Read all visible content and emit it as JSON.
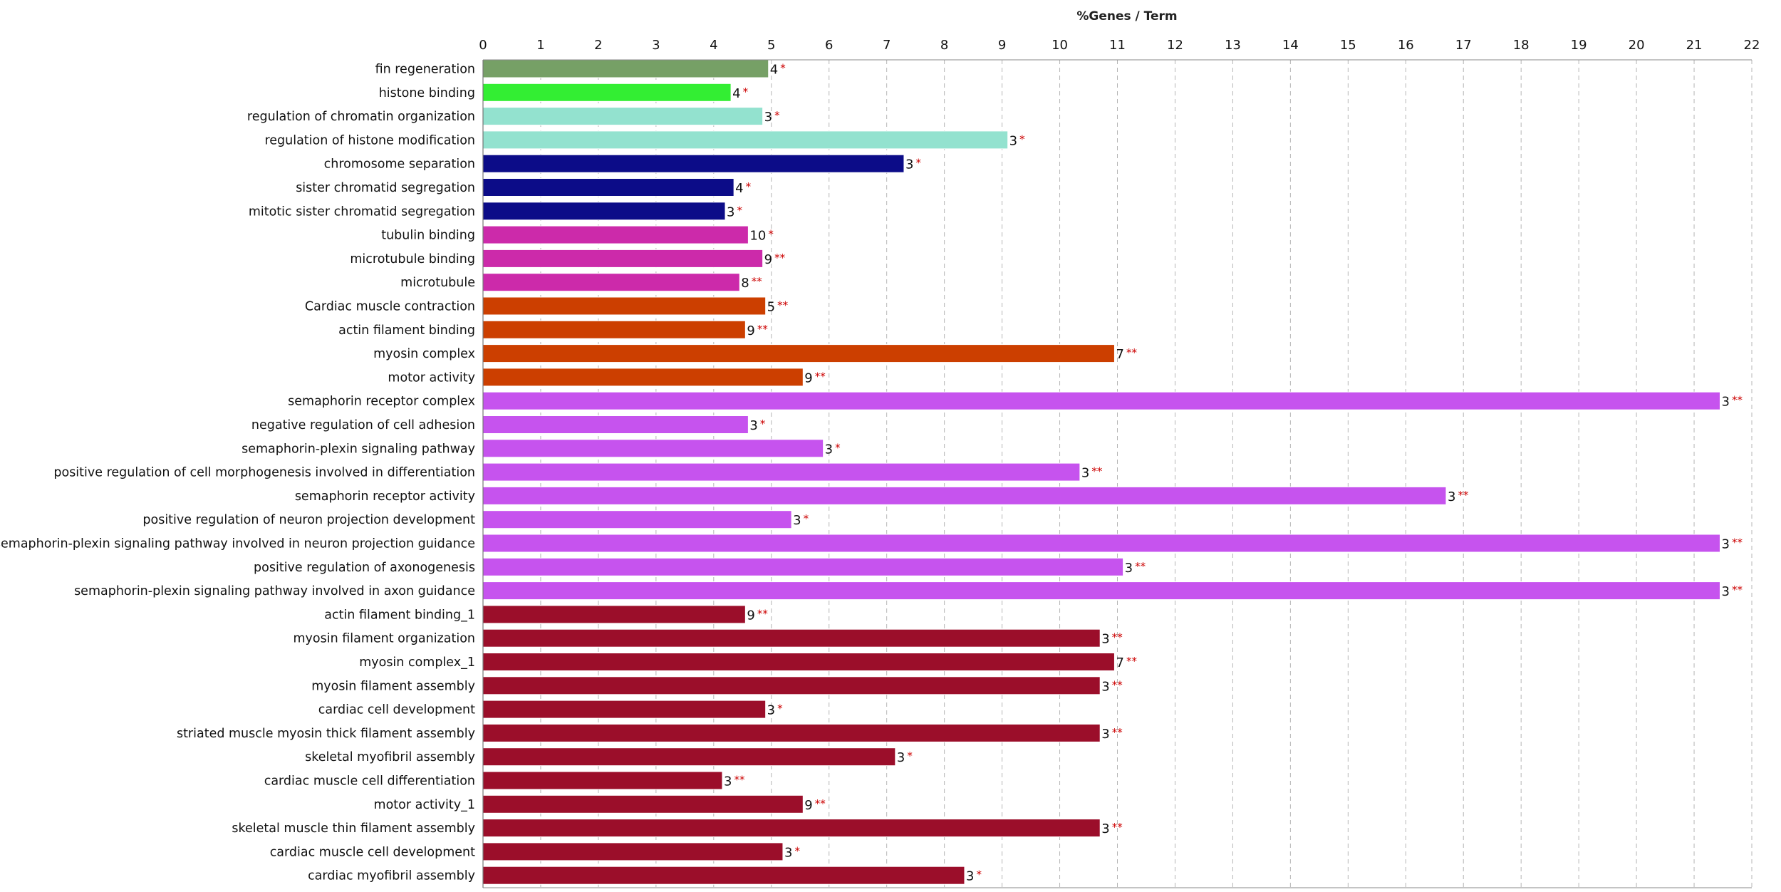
{
  "chart_data": {
    "type": "bar",
    "orientation": "horizontal",
    "xlabel": "%Genes / Term",
    "xlim": [
      0,
      22
    ],
    "x_ticks": [
      "0",
      "1",
      "2",
      "3",
      "4",
      "5",
      "6",
      "7",
      "8",
      "9",
      "10",
      "11",
      "12",
      "13",
      "14",
      "15",
      "16",
      "17",
      "18",
      "19",
      "20",
      "21",
      "22"
    ],
    "grid": true,
    "bars": [
      {
        "label": "fin regeneration",
        "value": 4.95,
        "count": "4",
        "sig": "*",
        "color": "#76a066"
      },
      {
        "label": "histone binding",
        "value": 4.3,
        "count": "4",
        "sig": "*",
        "color": "#33ee33"
      },
      {
        "label": "regulation of chromatin organization",
        "value": 4.85,
        "count": "3",
        "sig": "*",
        "color": "#93e2cf"
      },
      {
        "label": "regulation of histone modification",
        "value": 9.1,
        "count": "3",
        "sig": "*",
        "color": "#93e2cf"
      },
      {
        "label": "chromosome separation",
        "value": 7.3,
        "count": "3",
        "sig": "*",
        "color": "#0c0c88"
      },
      {
        "label": "sister chromatid segregation",
        "value": 4.35,
        "count": "4",
        "sig": "*",
        "color": "#0c0c88"
      },
      {
        "label": "mitotic sister chromatid segregation",
        "value": 4.2,
        "count": "3",
        "sig": "*",
        "color": "#0c0c88"
      },
      {
        "label": "tubulin binding",
        "value": 4.6,
        "count": "10",
        "sig": "*",
        "color": "#cc2aaa"
      },
      {
        "label": "microtubule binding",
        "value": 4.85,
        "count": "9",
        "sig": "**",
        "color": "#cc2aaa"
      },
      {
        "label": "microtubule",
        "value": 4.45,
        "count": "8",
        "sig": "**",
        "color": "#cc2aaa"
      },
      {
        "label": "Cardiac muscle contraction",
        "value": 4.9,
        "count": "5",
        "sig": "**",
        "color": "#cc3f00"
      },
      {
        "label": "actin filament binding",
        "value": 4.55,
        "count": "9",
        "sig": "**",
        "color": "#cc3f00"
      },
      {
        "label": "myosin complex",
        "value": 10.95,
        "count": "7",
        "sig": "**",
        "color": "#cc3f00"
      },
      {
        "label": "motor activity",
        "value": 5.55,
        "count": "9",
        "sig": "**",
        "color": "#cc3f00"
      },
      {
        "label": "semaphorin receptor complex",
        "value": 21.45,
        "count": "3",
        "sig": "**",
        "color": "#c653ee"
      },
      {
        "label": "negative regulation of cell adhesion",
        "value": 4.6,
        "count": "3",
        "sig": "*",
        "color": "#c653ee"
      },
      {
        "label": "semaphorin-plexin signaling pathway",
        "value": 5.9,
        "count": "3",
        "sig": "*",
        "color": "#c653ee"
      },
      {
        "label": "positive regulation of cell morphogenesis involved in differentiation",
        "value": 10.35,
        "count": "3",
        "sig": "**",
        "color": "#c653ee"
      },
      {
        "label": "semaphorin receptor activity",
        "value": 16.7,
        "count": "3",
        "sig": "**",
        "color": "#c653ee"
      },
      {
        "label": "positive regulation of neuron projection development",
        "value": 5.35,
        "count": "3",
        "sig": "*",
        "color": "#c653ee"
      },
      {
        "label": "semaphorin-plexin signaling pathway involved in neuron projection guidance",
        "value": 21.45,
        "count": "3",
        "sig": "**",
        "color": "#c653ee"
      },
      {
        "label": "positive regulation of axonogenesis",
        "value": 11.1,
        "count": "3",
        "sig": "**",
        "color": "#c653ee"
      },
      {
        "label": "semaphorin-plexin signaling pathway involved in axon guidance",
        "value": 21.45,
        "count": "3",
        "sig": "**",
        "color": "#c653ee"
      },
      {
        "label": "actin filament binding_1",
        "value": 4.55,
        "count": "9",
        "sig": "**",
        "color": "#9b0e2a"
      },
      {
        "label": "myosin filament organization",
        "value": 10.7,
        "count": "3",
        "sig": "**",
        "color": "#9b0e2a"
      },
      {
        "label": "myosin complex_1",
        "value": 10.95,
        "count": "7",
        "sig": "**",
        "color": "#9b0e2a"
      },
      {
        "label": "myosin filament assembly",
        "value": 10.7,
        "count": "3",
        "sig": "**",
        "color": "#9b0e2a"
      },
      {
        "label": "cardiac cell development",
        "value": 4.9,
        "count": "3",
        "sig": "*",
        "color": "#9b0e2a"
      },
      {
        "label": "striated muscle myosin thick filament assembly",
        "value": 10.7,
        "count": "3",
        "sig": "**",
        "color": "#9b0e2a"
      },
      {
        "label": "skeletal myofibril assembly",
        "value": 7.15,
        "count": "3",
        "sig": "*",
        "color": "#9b0e2a"
      },
      {
        "label": "cardiac muscle cell differentiation",
        "value": 4.15,
        "count": "3",
        "sig": "**",
        "color": "#9b0e2a"
      },
      {
        "label": "motor activity_1",
        "value": 5.55,
        "count": "9",
        "sig": "**",
        "color": "#9b0e2a"
      },
      {
        "label": "skeletal muscle thin filament assembly",
        "value": 10.7,
        "count": "3",
        "sig": "**",
        "color": "#9b0e2a"
      },
      {
        "label": "cardiac muscle cell development",
        "value": 5.2,
        "count": "3",
        "sig": "*",
        "color": "#9b0e2a"
      },
      {
        "label": "cardiac myofibril assembly",
        "value": 8.35,
        "count": "3",
        "sig": "*",
        "color": "#9b0e2a"
      }
    ]
  }
}
